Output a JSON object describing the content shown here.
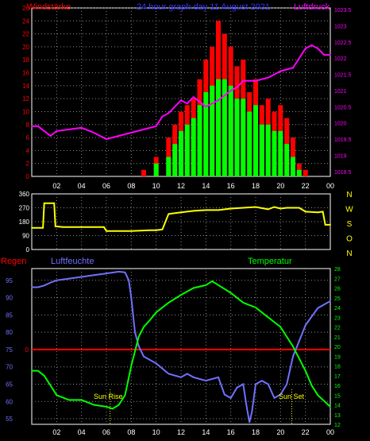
{
  "chart_data": [
    {
      "type": "bar",
      "title": "24 hour graph day 11 August 2021",
      "left_axis_label": "Windstärke",
      "right_axis_label": "Luftdruck",
      "y_left_ticks": [
        "0",
        "2",
        "4",
        "6",
        "8",
        "10",
        "12",
        "14",
        "16",
        "18",
        "20",
        "22",
        "24",
        "26"
      ],
      "y_right_ticks": [
        "1018.5",
        "1019",
        "1019.5",
        "1020",
        "1020.5",
        "1021",
        "1021.5",
        "1022",
        "1022.5",
        "1023",
        "1023.5"
      ],
      "x_ticks": [
        "02",
        "04",
        "06",
        "08",
        "10",
        "12",
        "14",
        "16",
        "18",
        "20",
        "22",
        "00"
      ],
      "xlim": [
        0,
        24
      ],
      "ylim_left": [
        0,
        26
      ],
      "ylim_right": [
        1018.35,
        1023.55
      ],
      "grid": true,
      "series": [
        {
          "name": "Windstärke Böen",
          "color": "#ff0000",
          "x": [
            9.0,
            10.0,
            11.0,
            11.5,
            12.0,
            12.5,
            13.0,
            13.5,
            14.0,
            14.5,
            15.0,
            15.5,
            16.0,
            16.5,
            17.0,
            17.5,
            18.0,
            18.5,
            19.0,
            19.5,
            20.0,
            20.5,
            21.0,
            21.5,
            22.0
          ],
          "values": [
            1,
            3,
            6,
            8,
            10,
            11,
            12,
            15,
            18,
            20,
            24,
            22,
            20,
            17,
            18,
            13,
            15,
            11,
            12,
            10,
            11,
            9,
            6,
            2,
            1
          ]
        },
        {
          "name": "Windstärke Mittel",
          "color": "#00ff00",
          "x": [
            9.0,
            10.0,
            11.0,
            11.5,
            12.0,
            12.5,
            13.0,
            13.5,
            14.0,
            14.5,
            15.0,
            15.5,
            16.0,
            16.5,
            17.0,
            17.5,
            18.0,
            18.5,
            19.0,
            19.5,
            20.0,
            20.5,
            21.0,
            21.5,
            22.0
          ],
          "values": [
            0,
            2,
            3,
            5,
            7,
            8,
            9,
            11,
            13,
            14,
            15,
            15,
            14,
            12,
            12,
            10,
            11,
            8,
            8,
            7,
            7,
            5,
            3,
            1,
            0
          ]
        },
        {
          "name": "Luftdruck",
          "color": "#ff00ff",
          "axis": "right",
          "x": [
            0,
            0.5,
            1,
            1.5,
            2,
            3,
            4,
            5,
            6,
            7,
            8,
            9,
            10,
            10.5,
            11,
            11.5,
            12,
            12.5,
            13,
            14,
            15,
            16,
            16.5,
            17,
            18,
            19,
            20,
            21,
            22,
            22.5,
            23,
            23.5,
            24
          ],
          "values": [
            1019.9,
            1019.9,
            1019.75,
            1019.6,
            1019.75,
            1019.8,
            1019.85,
            1019.7,
            1019.5,
            1019.6,
            1019.7,
            1019.8,
            1019.9,
            1020.2,
            1020.3,
            1020.5,
            1020.7,
            1020.6,
            1020.8,
            1020.5,
            1020.7,
            1021.0,
            1021.1,
            1021.3,
            1021.3,
            1021.4,
            1021.6,
            1021.7,
            1022.3,
            1022.4,
            1022.3,
            1022.1,
            1022.1
          ]
        }
      ]
    },
    {
      "type": "line",
      "right_axis_label": "N W S O N",
      "y_ticks": [
        "0",
        "90",
        "180",
        "270",
        "360"
      ],
      "ylim": [
        0,
        360
      ],
      "xlim": [
        0,
        24
      ],
      "grid": true,
      "series": [
        {
          "name": "Windrichtung",
          "color": "#ffff00",
          "x": [
            0,
            0.9,
            1.0,
            1.8,
            1.9,
            2.5,
            4,
            5.8,
            6.0,
            8,
            9.5,
            10,
            10.5,
            11,
            12,
            13,
            14,
            15,
            16,
            17,
            18,
            19,
            19.5,
            20,
            20.5,
            21,
            21.5,
            22,
            23,
            23.4,
            23.6,
            24
          ],
          "values": [
            140,
            140,
            300,
            300,
            150,
            145,
            145,
            145,
            120,
            120,
            125,
            125,
            130,
            230,
            240,
            250,
            255,
            255,
            265,
            270,
            275,
            260,
            275,
            265,
            270,
            270,
            270,
            245,
            240,
            245,
            160,
            160
          ]
        }
      ]
    },
    {
      "type": "line",
      "left_axis_label": "Regen",
      "second_axis_label": "Luftfeuchte",
      "right_axis_label": "Temperatur",
      "y_left_ticks": [
        "55",
        "60",
        "65",
        "70",
        "75",
        "80",
        "85",
        "90",
        "95"
      ],
      "y_right_ticks": [
        "12",
        "13",
        "14",
        "15",
        "16",
        "17",
        "18",
        "19",
        "20",
        "21",
        "22",
        "23",
        "24",
        "25",
        "26",
        "27",
        "28"
      ],
      "x_ticks": [
        "02",
        "04",
        "06",
        "08",
        "10",
        "12",
        "14",
        "16",
        "18",
        "20",
        "22",
        "00"
      ],
      "ylim_left": [
        53.4,
        98.4
      ],
      "ylim_right": [
        12,
        28
      ],
      "xlim": [
        0,
        24
      ],
      "grid": true,
      "annotations": [
        {
          "text": "Sun Rise",
          "x": 6.3
        },
        {
          "text": "Sun Set",
          "x": 20.9
        }
      ],
      "series": [
        {
          "name": "Regen",
          "color": "#ff0000",
          "x": [
            0,
            24
          ],
          "values": [
            75,
            75
          ]
        },
        {
          "name": "Luftfeuchte",
          "color": "#7070ff",
          "x": [
            0,
            0.5,
            1,
            1.6,
            2,
            3,
            4,
            5,
            6,
            7,
            7.5,
            7.8,
            8,
            8.3,
            8.6,
            9,
            10,
            11,
            12,
            12.5,
            13,
            14,
            15,
            15.5,
            16,
            16.5,
            17,
            17.3,
            17.5,
            17.7,
            18,
            18.5,
            19,
            19.5,
            20,
            20.5,
            21,
            22,
            23,
            24
          ],
          "values": [
            93,
            93,
            93.5,
            94.5,
            95,
            95.5,
            96,
            96.5,
            97,
            97.5,
            97.3,
            95,
            90,
            80,
            76,
            73,
            71,
            68,
            67,
            68,
            67,
            66,
            67,
            62,
            61,
            64,
            65,
            58,
            54,
            57,
            65,
            66,
            65,
            61,
            62,
            65,
            73,
            82,
            87,
            89
          ]
        },
        {
          "name": "Temperatur",
          "color": "#00ff00",
          "axis": "right",
          "x": [
            0,
            0.5,
            1,
            1.5,
            2,
            3,
            4,
            5,
            6,
            6.5,
            7,
            7.5,
            8,
            8.3,
            8.6,
            9,
            9.5,
            10,
            11,
            12,
            13,
            14,
            14.5,
            15,
            16,
            17,
            18,
            19,
            20,
            21,
            22,
            22.5,
            23,
            24
          ],
          "values": [
            17.5,
            17.5,
            17,
            16,
            15,
            14.5,
            14.5,
            14,
            13.8,
            13.6,
            14,
            15,
            18,
            19.5,
            21,
            22,
            22.7,
            23.5,
            24.5,
            25.3,
            26,
            26.3,
            26.7,
            26.3,
            25.5,
            24.5,
            24,
            23,
            22,
            20,
            17.5,
            16,
            15,
            13.8
          ]
        }
      ]
    }
  ]
}
